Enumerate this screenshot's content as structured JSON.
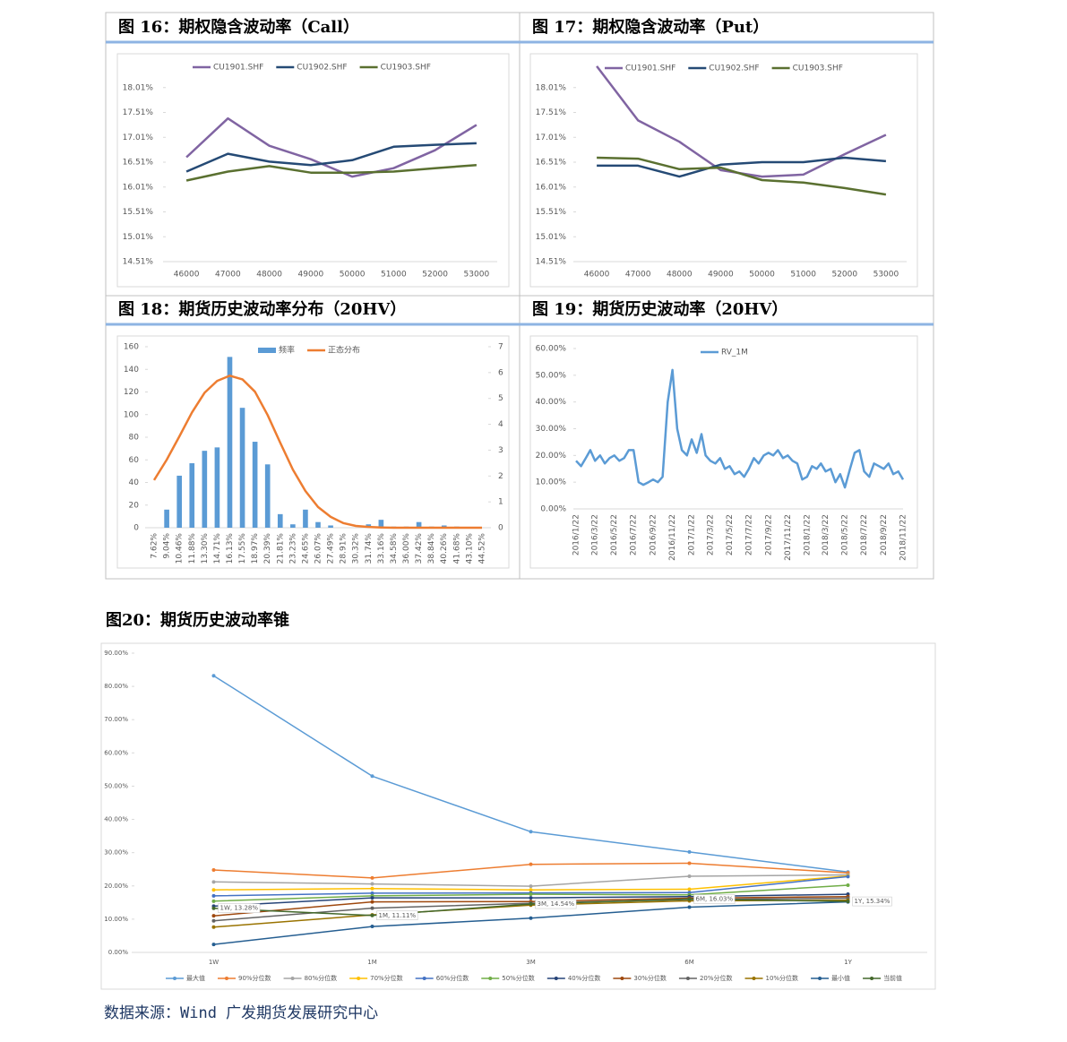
{
  "chart_data": [
    {
      "type": "line",
      "title": "图 16：期权隐含波动率（Call）",
      "legend": "top",
      "categories": [
        "46000",
        "47000",
        "48000",
        "49000",
        "50000",
        "51000",
        "52000",
        "53000"
      ],
      "ylim": [
        14.51,
        18.51
      ],
      "yticks": [
        {
          "value": 14.51,
          "label": "14.51%"
        },
        {
          "value": 15.01,
          "label": "15.01%"
        },
        {
          "value": 15.51,
          "label": "15.51%"
        },
        {
          "value": 16.01,
          "label": "16.01%"
        },
        {
          "value": 16.51,
          "label": "16.51%"
        },
        {
          "value": 17.01,
          "label": "17.01%"
        },
        {
          "value": 17.51,
          "label": "17.51%"
        },
        {
          "value": 18.01,
          "label": "18.01%"
        }
      ],
      "series": [
        {
          "name": "CU1901.SHF",
          "color": "#8064a2",
          "values": [
            16.61,
            17.39,
            16.84,
            16.57,
            16.22,
            16.39,
            16.75,
            17.26
          ]
        },
        {
          "name": "CU1902.SHF",
          "color": "#254a75",
          "values": [
            16.32,
            16.68,
            16.52,
            16.45,
            16.55,
            16.82,
            16.86,
            16.89
          ]
        },
        {
          "name": "CU1903.SHF",
          "color": "#5a7030",
          "values": [
            16.14,
            16.32,
            16.43,
            16.3,
            16.3,
            16.32,
            16.39,
            16.45
          ]
        }
      ]
    },
    {
      "type": "line",
      "title": "图 17：期权隐含波动率（Put）",
      "legend": "top",
      "categories": [
        "46000",
        "47000",
        "48000",
        "49000",
        "50000",
        "51000",
        "52000",
        "53000"
      ],
      "ylim": [
        14.51,
        18.51
      ],
      "yticks": [
        {
          "value": 14.51,
          "label": "14.51%"
        },
        {
          "value": 15.01,
          "label": "15.01%"
        },
        {
          "value": 15.51,
          "label": "15.51%"
        },
        {
          "value": 16.01,
          "label": "16.01%"
        },
        {
          "value": 16.51,
          "label": "16.51%"
        },
        {
          "value": 17.01,
          "label": "17.01%"
        },
        {
          "value": 17.51,
          "label": "17.51%"
        },
        {
          "value": 18.01,
          "label": "18.01%"
        }
      ],
      "series": [
        {
          "name": "CU1901.SHF",
          "color": "#8064a2",
          "values": [
            18.44,
            17.35,
            16.92,
            16.35,
            16.22,
            16.26,
            16.67,
            17.06
          ]
        },
        {
          "name": "CU1902.SHF",
          "color": "#254a75",
          "values": [
            16.44,
            16.44,
            16.22,
            16.46,
            16.51,
            16.51,
            16.6,
            16.53
          ]
        },
        {
          "name": "CU1903.SHF",
          "color": "#5a7030",
          "values": [
            16.6,
            16.58,
            16.37,
            16.4,
            16.15,
            16.1,
            15.99,
            15.86
          ]
        }
      ]
    },
    {
      "type": "bar",
      "title": "图 18：期货历史波动率分布（20HV）",
      "legend": "top",
      "categories": [
        "7.62%",
        "9.04%",
        "10.46%",
        "11.88%",
        "13.30%",
        "14.71%",
        "16.13%",
        "17.55%",
        "18.97%",
        "20.39%",
        "21.81%",
        "23.23%",
        "24.65%",
        "26.07%",
        "27.49%",
        "28.91%",
        "30.32%",
        "31.74%",
        "33.16%",
        "34.58%",
        "36.00%",
        "37.42%",
        "38.84%",
        "40.26%",
        "41.68%",
        "43.10%",
        "44.52%"
      ],
      "ylim": [
        0,
        160
      ],
      "yticks": [
        0,
        20,
        40,
        60,
        80,
        100,
        120,
        140,
        160
      ],
      "y2lim": [
        0,
        7
      ],
      "y2ticks": [
        0,
        1,
        2,
        3,
        4,
        5,
        6,
        7
      ],
      "series": [
        {
          "name": "频率",
          "type": "bar",
          "color": "#5b9bd5",
          "values": [
            0,
            16,
            46,
            57,
            68,
            71,
            151,
            106,
            76,
            56,
            12,
            3,
            16,
            5,
            2,
            0,
            0,
            3,
            7,
            1,
            1,
            5,
            1,
            2,
            1,
            0,
            0
          ]
        },
        {
          "name": "正态分布",
          "type": "line",
          "axis": "y2",
          "color": "#ed7d31",
          "values": [
            1.84,
            2.63,
            3.53,
            4.46,
            5.22,
            5.68,
            5.88,
            5.74,
            5.26,
            4.36,
            3.29,
            2.25,
            1.42,
            0.8,
            0.42,
            0.18,
            0.07,
            0.03,
            0.01,
            0,
            0,
            0,
            0,
            0,
            0,
            0,
            0
          ]
        }
      ]
    },
    {
      "type": "line",
      "title": "图 19：期货历史波动率（20HV）",
      "legend": "top",
      "x": [
        "2016/1/22",
        "2016/2/7",
        "2016/2/22",
        "2016/3/7",
        "2016/3/22",
        "2016/4/7",
        "2016/4/22",
        "2016/5/7",
        "2016/5/22",
        "2016/6/7",
        "2016/6/22",
        "2016/7/7",
        "2016/7/22",
        "2016/8/7",
        "2016/8/22",
        "2016/9/7",
        "2016/9/22",
        "2016/10/7",
        "2016/10/22",
        "2016/11/7",
        "2016/11/22",
        "2016/12/7",
        "2016/12/22",
        "2017/1/7",
        "2017/1/22",
        "2017/2/7",
        "2017/2/22",
        "2017/3/7",
        "2017/3/22",
        "2017/4/7",
        "2017/4/22",
        "2017/5/7",
        "2017/5/22",
        "2017/6/7",
        "2017/6/22",
        "2017/7/7",
        "2017/7/22",
        "2017/8/7",
        "2017/8/22",
        "2017/9/7",
        "2017/9/22",
        "2017/10/7",
        "2017/10/22",
        "2017/11/7",
        "2017/11/22",
        "2017/12/7",
        "2017/12/22",
        "2018/1/7",
        "2018/1/22",
        "2018/2/7",
        "2018/2/22",
        "2018/3/7",
        "2018/3/22",
        "2018/4/7",
        "2018/4/22",
        "2018/5/7",
        "2018/5/22",
        "2018/6/7",
        "2018/6/22",
        "2018/7/7",
        "2018/7/22",
        "2018/8/7",
        "2018/8/22",
        "2018/9/7",
        "2018/9/22",
        "2018/10/7",
        "2018/10/22",
        "2018/11/7",
        "2018/11/22"
      ],
      "xlim": [
        "2016/1/22",
        "2018/11/22"
      ],
      "xticks": [
        "2016/1/22",
        "2016/3/22",
        "2016/5/22",
        "2016/7/22",
        "2016/9/22",
        "2016/11/22",
        "2017/1/22",
        "2017/3/22",
        "2017/5/22",
        "2017/7/22",
        "2017/9/22",
        "2017/11/22",
        "2018/1/22",
        "2018/3/22",
        "2018/5/22",
        "2018/7/22",
        "2018/9/22",
        "2018/11/22"
      ],
      "ylim": [
        0,
        60
      ],
      "yticks": [
        {
          "value": 0,
          "label": "0.00%"
        },
        {
          "value": 10,
          "label": "10.00%"
        },
        {
          "value": 20,
          "label": "20.00%"
        },
        {
          "value": 30,
          "label": "30.00%"
        },
        {
          "value": 40,
          "label": "40.00%"
        },
        {
          "value": 50,
          "label": "50.00%"
        },
        {
          "value": 60,
          "label": "60.00%"
        }
      ],
      "series": [
        {
          "name": "RV_1M",
          "color": "#5b9bd5",
          "values": [
            18,
            16,
            19,
            22,
            18,
            20,
            17,
            19,
            20,
            18,
            19,
            22,
            22,
            10,
            9,
            10,
            11,
            10,
            12,
            40,
            52,
            30,
            22,
            20,
            26,
            21,
            28,
            20,
            18,
            17,
            19,
            15,
            16,
            13,
            14,
            12,
            15,
            19,
            17,
            20,
            21,
            20,
            22,
            19,
            20,
            18,
            17,
            11,
            12,
            16,
            15,
            17,
            14,
            15,
            10,
            13,
            8,
            15,
            21,
            22,
            14,
            12,
            17,
            16,
            15,
            17,
            13,
            14,
            11
          ]
        }
      ]
    },
    {
      "type": "line",
      "title": "图20：期货历史波动率锥",
      "legend": "bottom",
      "markers": true,
      "categories": [
        "1W",
        "1M",
        "3M",
        "6M",
        "1Y"
      ],
      "ylim": [
        0,
        90
      ],
      "yticks": [
        {
          "value": 0,
          "label": "0.00%"
        },
        {
          "value": 10,
          "label": "10.00%"
        },
        {
          "value": 20,
          "label": "20.00%"
        },
        {
          "value": 30,
          "label": "30.00%"
        },
        {
          "value": 40,
          "label": "40.00%"
        },
        {
          "value": 50,
          "label": "50.00%"
        },
        {
          "value": 60,
          "label": "60.00%"
        },
        {
          "value": 70,
          "label": "70.00%"
        },
        {
          "value": 80,
          "label": "80.00%"
        },
        {
          "value": 90,
          "label": "90.00%"
        }
      ],
      "series": [
        {
          "name": "最大值",
          "color": "#5b9bd5",
          "values": [
            83.2,
            53.0,
            36.3,
            30.2,
            24.2
          ]
        },
        {
          "name": "90%分位数",
          "color": "#ed7d31",
          "values": [
            24.8,
            22.4,
            26.5,
            26.8,
            23.9
          ]
        },
        {
          "name": "80%分位数",
          "color": "#a5a5a5",
          "values": [
            21.2,
            20.6,
            19.9,
            22.9,
            23.3
          ]
        },
        {
          "name": "70%分位数",
          "color": "#ffc000",
          "values": [
            18.8,
            19.2,
            18.8,
            19.0,
            23.0
          ]
        },
        {
          "name": "60%分位数",
          "color": "#4472c4",
          "values": [
            17.0,
            17.8,
            17.9,
            18.0,
            22.8
          ]
        },
        {
          "name": "50%分位数",
          "color": "#70ad47",
          "values": [
            15.4,
            17.0,
            17.5,
            17.3,
            20.2
          ]
        },
        {
          "name": "40%分位数",
          "color": "#264478",
          "values": [
            13.9,
            16.4,
            16.4,
            16.8,
            17.5
          ]
        },
        {
          "name": "30%分位数",
          "color": "#9e480e",
          "values": [
            11.0,
            15.2,
            15.3,
            16.3,
            16.8
          ]
        },
        {
          "name": "20%分位数",
          "color": "#636363",
          "values": [
            9.5,
            13.3,
            14.8,
            15.9,
            16.3
          ]
        },
        {
          "name": "10%分位数",
          "color": "#997300",
          "values": [
            7.6,
            11.3,
            14.2,
            15.5,
            15.7
          ]
        },
        {
          "name": "最小值",
          "color": "#255e91",
          "values": [
            2.4,
            7.8,
            10.3,
            13.6,
            15.2
          ]
        },
        {
          "name": "当前值",
          "color": "#43682b",
          "values": [
            13.28,
            11.11,
            14.54,
            16.03,
            15.34
          ],
          "value_labels": [
            "1W, 13.28%",
            "1M, 11.11%",
            "3M, 14.54%",
            "6M, 16.03%",
            "1Y, 15.34%"
          ]
        }
      ]
    }
  ],
  "source": "数据来源：Wind 广发期货发展研究中心"
}
